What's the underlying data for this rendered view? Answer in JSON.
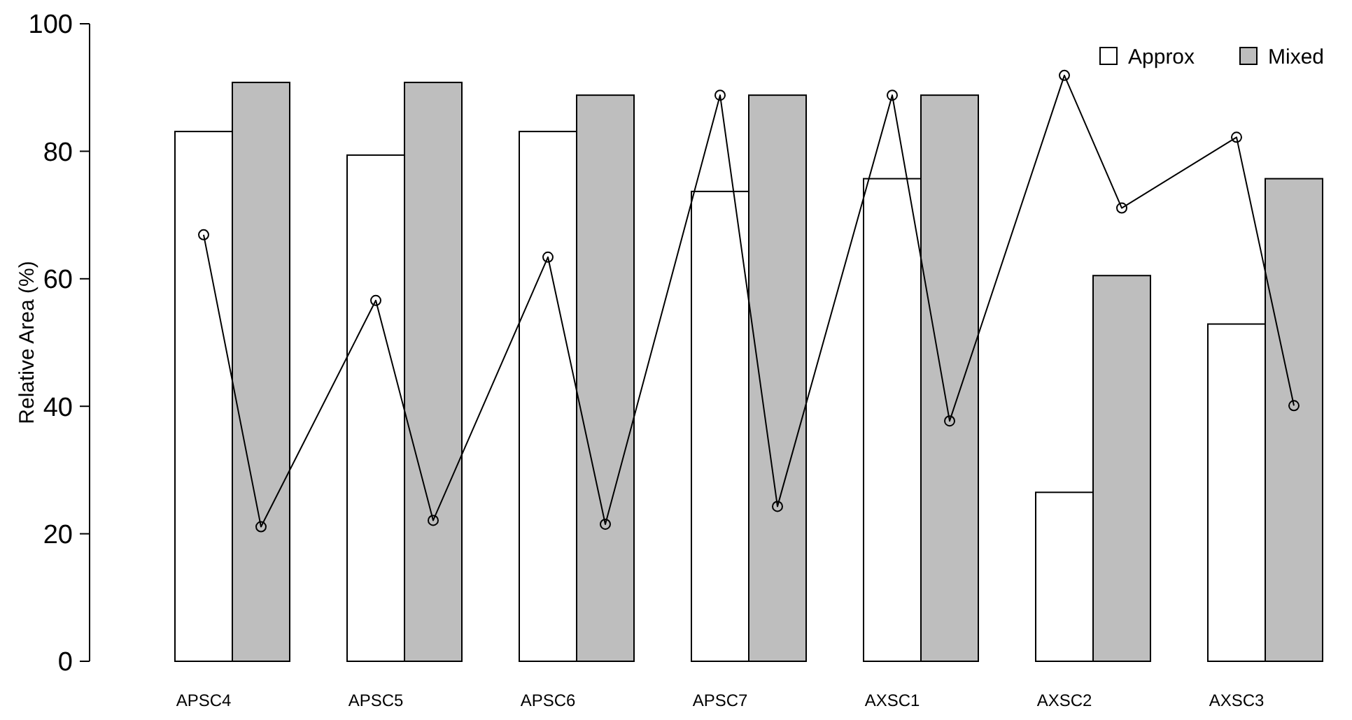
{
  "chart_data": {
    "type": "bar",
    "ylabel": "Relative Area (%)",
    "categories": [
      null,
      "APSC4",
      null,
      null,
      "APSC5",
      null,
      null,
      "APSC6",
      null,
      null,
      "APSC7",
      null,
      null,
      "AXSC1",
      null,
      null,
      "AXSC2",
      null,
      null,
      "AXSC3",
      null
    ],
    "series": [
      {
        "name": "Approx",
        "color": "#ffffff",
        "values": [
          null,
          83.1,
          null,
          null,
          79.4,
          null,
          null,
          83.1,
          null,
          null,
          73.7,
          null,
          null,
          75.7,
          null,
          null,
          26.5,
          null,
          null,
          52.9,
          null
        ]
      },
      {
        "name": "Mixed",
        "color": "#bebebe",
        "values": [
          null,
          null,
          90.8,
          null,
          null,
          90.8,
          null,
          null,
          88.8,
          null,
          null,
          88.8,
          null,
          null,
          88.8,
          null,
          null,
          60.5,
          null,
          null,
          75.7
        ]
      },
      {
        "type": "line",
        "color": "#000000",
        "marker": "circle",
        "values": [
          null,
          66.9,
          21.1,
          null,
          56.6,
          22.1,
          null,
          63.4,
          21.5,
          null,
          88.8,
          24.3,
          null,
          88.8,
          37.7,
          null,
          91.9,
          71.1,
          null,
          82.2,
          40.1
        ]
      }
    ],
    "ylim": [
      0,
      100
    ],
    "yticks": [
      0,
      20,
      40,
      60,
      80,
      100
    ],
    "legend": "top right",
    "grid": false
  }
}
